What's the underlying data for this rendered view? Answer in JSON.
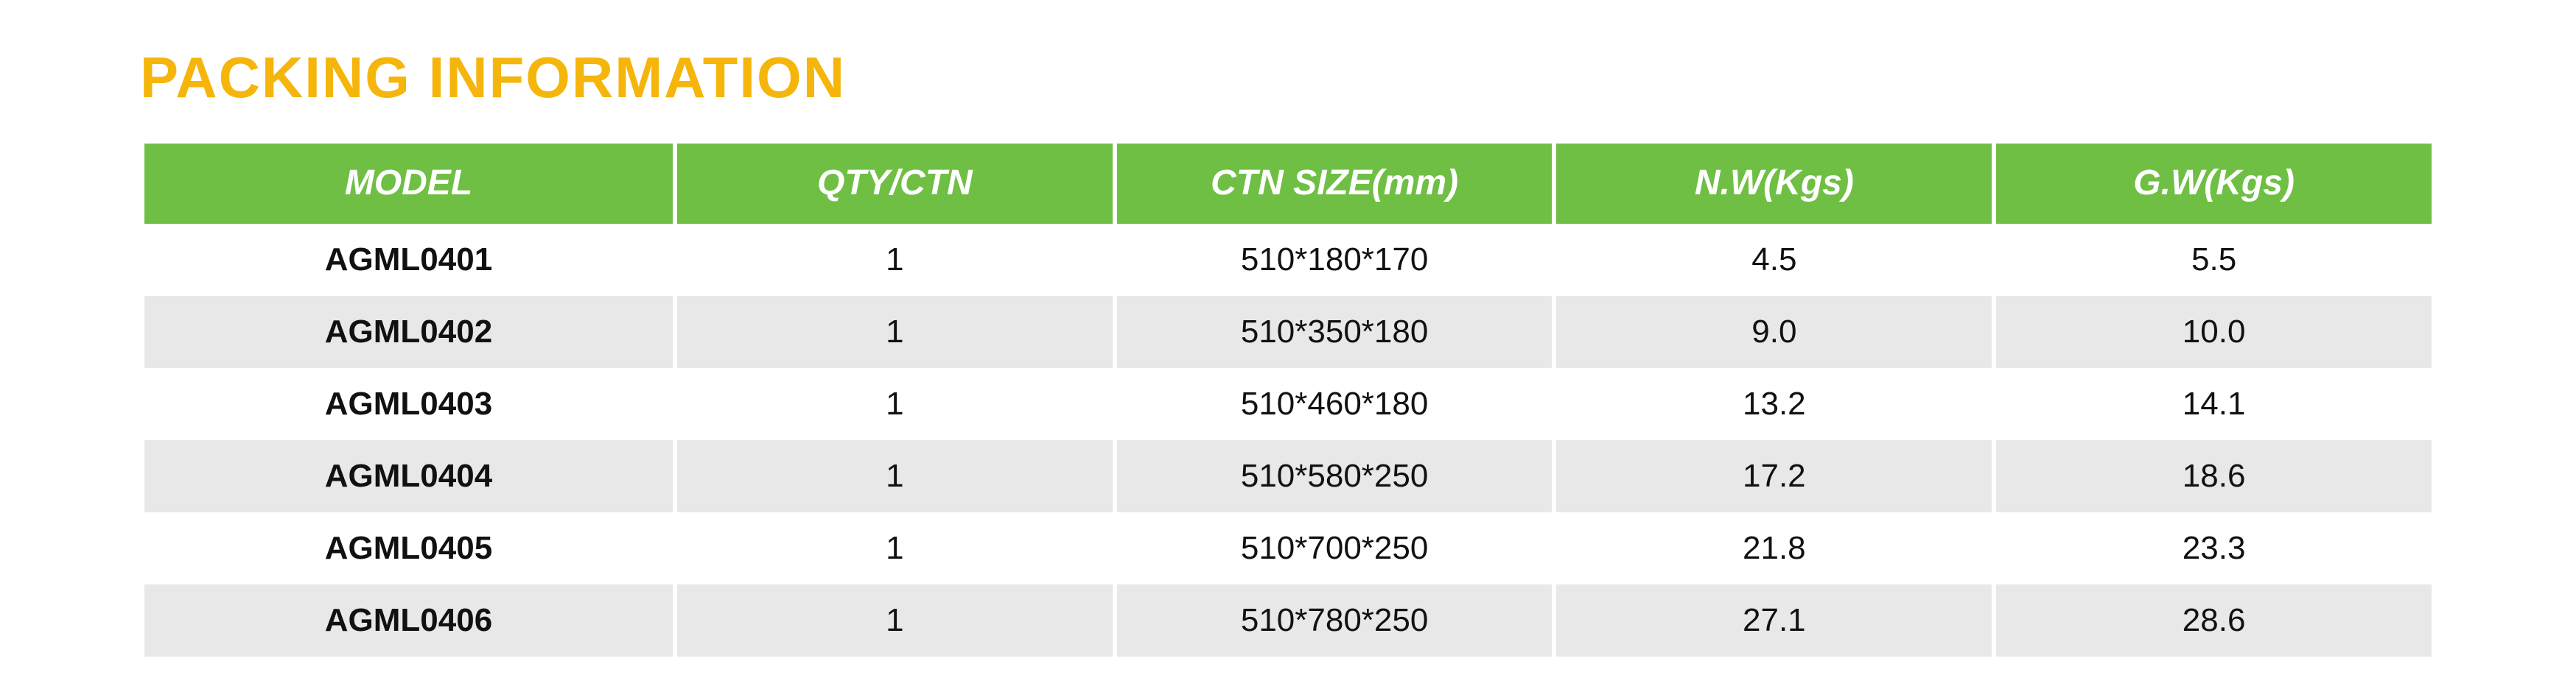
{
  "title": "PACKING INFORMATION",
  "title_color": "#f5b50b",
  "header_bg": "#6fbf44",
  "header_text_color": "#ffffff",
  "row_alt_bg": "#e8e8e8",
  "text_color": "#111111",
  "columns": [
    "MODEL",
    "QTY/CTN",
    "CTN SIZE(mm)",
    "N.W(Kgs)",
    "G.W(Kgs)"
  ],
  "rows": [
    {
      "model": "AGML0401",
      "qty": "1",
      "ctn": "510*180*170",
      "nw": "4.5",
      "gw": "5.5"
    },
    {
      "model": "AGML0402",
      "qty": "1",
      "ctn": "510*350*180",
      "nw": "9.0",
      "gw": "10.0"
    },
    {
      "model": "AGML0403",
      "qty": "1",
      "ctn": "510*460*180",
      "nw": "13.2",
      "gw": "14.1"
    },
    {
      "model": "AGML0404",
      "qty": "1",
      "ctn": "510*580*250",
      "nw": "17.2",
      "gw": "18.6"
    },
    {
      "model": "AGML0405",
      "qty": "1",
      "ctn": "510*700*250",
      "nw": "21.8",
      "gw": "23.3"
    },
    {
      "model": "AGML0406",
      "qty": "1",
      "ctn": "510*780*250",
      "nw": "27.1",
      "gw": "28.6"
    }
  ]
}
